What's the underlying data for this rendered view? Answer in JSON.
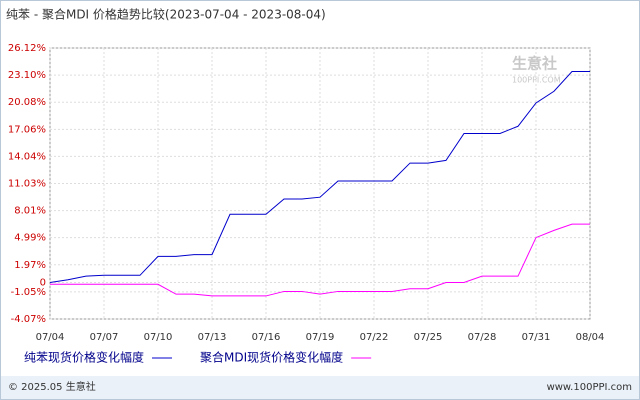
{
  "chart_data": {
    "type": "line",
    "title": "纯苯 - 聚合MDI 价格趋势比较(2023-07-04 - 2023-08-04)",
    "categories": [
      "07/04",
      null,
      null,
      "07/07",
      null,
      null,
      "07/10",
      null,
      null,
      "07/13",
      null,
      null,
      "07/16",
      null,
      null,
      "07/19",
      null,
      null,
      "07/22",
      null,
      null,
      "07/25",
      null,
      null,
      "07/28",
      null,
      null,
      "07/31",
      null,
      null,
      "08/04"
    ],
    "series": [
      {
        "name": "纯苯现货价格变化幅度",
        "color": "#0000cc",
        "values": [
          0,
          0.3,
          0.7,
          0.8,
          0.8,
          0.8,
          2.9,
          2.9,
          3.1,
          3.1,
          7.6,
          7.6,
          7.6,
          9.3,
          9.3,
          9.5,
          11.3,
          11.3,
          11.3,
          11.3,
          13.3,
          13.3,
          13.6,
          16.6,
          16.6,
          16.6,
          17.4,
          20.0,
          21.3,
          23.5,
          23.5
        ]
      },
      {
        "name": "聚合MDI现货价格变化幅度",
        "color": "#ff00ff",
        "values": [
          -0.2,
          -0.2,
          -0.2,
          -0.2,
          -0.2,
          -0.2,
          -0.2,
          -1.3,
          -1.3,
          -1.5,
          -1.5,
          -1.5,
          -1.5,
          -1.0,
          -1.0,
          -1.3,
          -1.0,
          -1.0,
          -1.0,
          -1.0,
          -0.7,
          -0.7,
          0.0,
          0.0,
          0.7,
          0.7,
          0.7,
          5.0,
          5.8,
          6.5,
          6.5
        ]
      }
    ],
    "ylim": [
      -4.07,
      26.12
    ],
    "yticks": [
      {
        "value": -4.07,
        "label": "-4.07%"
      },
      {
        "value": -1.05,
        "label": "-1.05%"
      },
      0,
      {
        "value": 1.97,
        "label": "1.97%"
      },
      {
        "value": 4.99,
        "label": "4.99%"
      },
      {
        "value": 8.01,
        "label": "8.01%"
      },
      {
        "value": 11.03,
        "label": "11.03%"
      },
      {
        "value": 14.04,
        "label": "14.04%"
      },
      {
        "value": 17.06,
        "label": "17.06%"
      },
      {
        "value": 20.08,
        "label": "20.08%"
      },
      {
        "value": 23.1,
        "label": "23.10%"
      },
      {
        "value": 26.12,
        "label": "26.12%"
      }
    ],
    "grid": true,
    "watermark": {
      "name": "生意社",
      "site": "100PPI.COM"
    },
    "footer": {
      "copyright": "© 2025.05 生意社",
      "site": "www.100PPI.com"
    }
  }
}
